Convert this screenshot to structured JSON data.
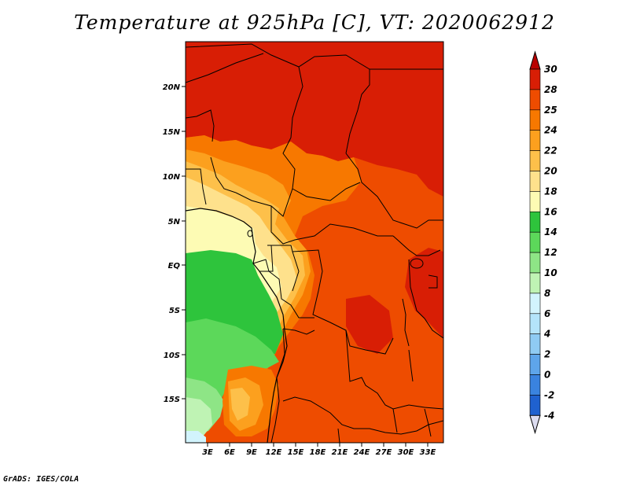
{
  "title": "Temperature at 925hPa [C], VT: 2020062912",
  "credit": "GrADS: IGES/COLA",
  "map": {
    "lat_ticks": [
      "20N",
      "15N",
      "10N",
      "5N",
      "EQ",
      "5S",
      "10S",
      "15S"
    ],
    "lon_ticks": [
      "3E",
      "6E",
      "9E",
      "12E",
      "15E",
      "18E",
      "21E",
      "24E",
      "27E",
      "30E",
      "33E"
    ]
  },
  "colorbar": {
    "labels": [
      "30",
      "28",
      "25",
      "24",
      "22",
      "20",
      "18",
      "16",
      "14",
      "12",
      "10",
      "8",
      "6",
      "4",
      "2",
      "0",
      "-2",
      "-4"
    ],
    "colors": [
      "#a50000",
      "#d81e05",
      "#ee4c00",
      "#f77800",
      "#fca01e",
      "#fdc04a",
      "#fee18c",
      "#fdfbb4",
      "#2ec43c",
      "#5cd85a",
      "#8ee586",
      "#bff3b4",
      "#d2f4fd",
      "#b4e4fa",
      "#8fcbf3",
      "#5ea5ea",
      "#3a83df",
      "#1f61cf",
      "#0a3ea6",
      "#001a74",
      "#dcdcf0"
    ],
    "over_color": "#b90000",
    "under_color": "#dcdcf0"
  }
}
